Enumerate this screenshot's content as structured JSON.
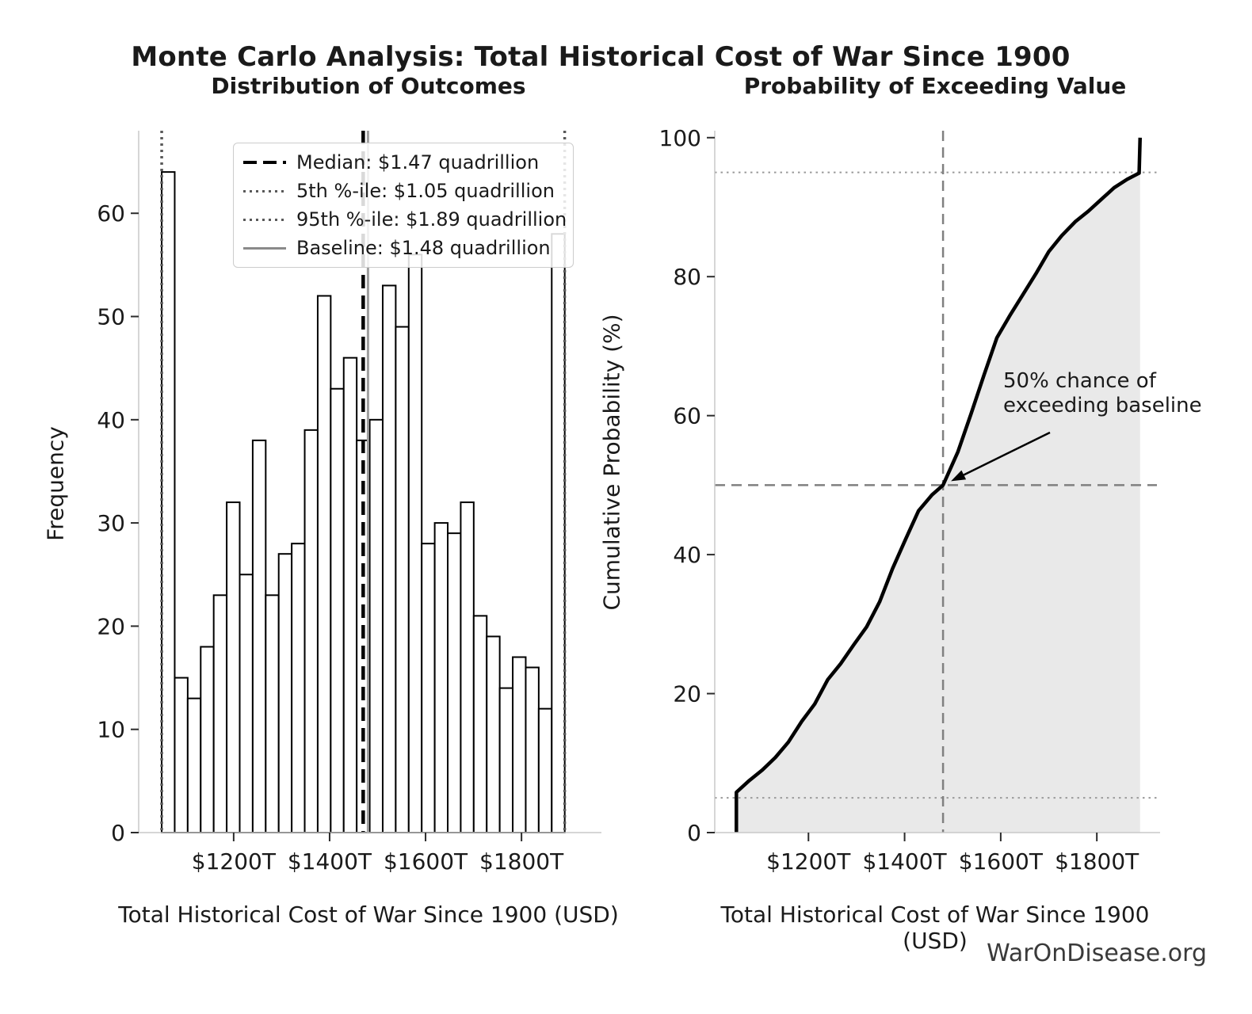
{
  "page": {
    "title": "Monte Carlo Analysis: Total Historical Cost of War Since 1900",
    "footer": "WarOnDisease.org"
  },
  "chart_data": [
    {
      "type": "bar",
      "subtype": "histogram",
      "title": "Distribution of Outcomes",
      "xlabel": "Total Historical Cost of War Since 1900 (USD)",
      "ylabel": "Frequency",
      "grid": false,
      "bar_fill": "#ffffff",
      "bar_edge": "#000000",
      "bin_start_T": 1050,
      "bin_width_T": 27.1,
      "frequencies": [
        64,
        15,
        13,
        18,
        23,
        32,
        25,
        38,
        23,
        27,
        28,
        39,
        52,
        43,
        46,
        38,
        40,
        53,
        49,
        56,
        28,
        30,
        29,
        32,
        21,
        19,
        14,
        17,
        16,
        12,
        58
      ],
      "xlim_T": [
        1002,
        1960
      ],
      "ylim": [
        0,
        68
      ],
      "x_ticks": [
        {
          "v": 1200,
          "label": "$1200T"
        },
        {
          "v": 1400,
          "label": "$1400T"
        },
        {
          "v": 1600,
          "label": "$1600T"
        },
        {
          "v": 1800,
          "label": "$1800T"
        }
      ],
      "y_ticks": [
        0,
        10,
        20,
        30,
        40,
        50,
        60
      ],
      "vlines": [
        {
          "name": "median",
          "x_T": 1470,
          "style": "dashed",
          "color": "#000000",
          "width": 4.5
        },
        {
          "name": "p5",
          "x_T": 1050,
          "style": "dotted",
          "color": "#595959",
          "width": 3.5
        },
        {
          "name": "p95",
          "x_T": 1890,
          "style": "dotted",
          "color": "#595959",
          "width": 3.5
        },
        {
          "name": "baseline",
          "x_T": 1480,
          "style": "solid",
          "color": "#9e9e9e",
          "width": 3
        }
      ],
      "legend": {
        "position": "upper-left-inside",
        "items": [
          {
            "label": "Median: $1.47 quadrillion",
            "style": "dashed",
            "color": "#000000"
          },
          {
            "label": "5th %-ile: $1.05 quadrillion",
            "style": "dotted",
            "color": "#595959"
          },
          {
            "label": "95th %-ile: $1.89 quadrillion",
            "style": "dotted",
            "color": "#595959"
          },
          {
            "label": "Baseline: $1.48 quadrillion",
            "style": "solid",
            "color": "#8a8a8a"
          }
        ]
      }
    },
    {
      "type": "line",
      "subtype": "empirical-cdf",
      "title": "Probability of Exceeding Value",
      "xlabel": "Total Historical Cost of War Since 1900 (USD)",
      "ylabel": "Cumulative Probability (%)",
      "grid": false,
      "line_color": "#000000",
      "line_width": 4.5,
      "fill_color": "#e9e9e9",
      "xlim_T": [
        1005,
        1925
      ],
      "ylim": [
        0,
        101
      ],
      "x_ticks": [
        {
          "v": 1200,
          "label": "$1200T"
        },
        {
          "v": 1400,
          "label": "$1400T"
        },
        {
          "v": 1600,
          "label": "$1600T"
        },
        {
          "v": 1800,
          "label": "$1800T"
        }
      ],
      "y_ticks": [
        0,
        20,
        40,
        60,
        80,
        100
      ],
      "points": [
        [
          1050,
          0
        ],
        [
          1050,
          5.8
        ],
        [
          1077,
          7.5
        ],
        [
          1104,
          9.0
        ],
        [
          1131,
          10.8
        ],
        [
          1158,
          13.0
        ],
        [
          1186,
          16.0
        ],
        [
          1213,
          18.5
        ],
        [
          1240,
          22.0
        ],
        [
          1267,
          24.3
        ],
        [
          1294,
          27.0
        ],
        [
          1321,
          29.6
        ],
        [
          1348,
          33.2
        ],
        [
          1375,
          38.0
        ],
        [
          1402,
          42.2
        ],
        [
          1429,
          46.3
        ],
        [
          1457,
          48.6
        ],
        [
          1480,
          50.0
        ],
        [
          1511,
          54.8
        ],
        [
          1538,
          60.2
        ],
        [
          1565,
          65.8
        ],
        [
          1592,
          71.2
        ],
        [
          1619,
          74.4
        ],
        [
          1646,
          77.4
        ],
        [
          1673,
          80.4
        ],
        [
          1700,
          83.6
        ],
        [
          1727,
          85.9
        ],
        [
          1755,
          87.9
        ],
        [
          1782,
          89.4
        ],
        [
          1809,
          91.1
        ],
        [
          1836,
          92.8
        ],
        [
          1863,
          94.0
        ],
        [
          1888,
          94.9
        ],
        [
          1890,
          100
        ]
      ],
      "dotted_levels": [
        5,
        95
      ],
      "crosshair": {
        "x_T": 1480,
        "p": 50
      },
      "annotation": {
        "line1": "50% chance of",
        "line2": "exceeding baseline",
        "target": [
          1480,
          50
        ]
      }
    }
  ]
}
